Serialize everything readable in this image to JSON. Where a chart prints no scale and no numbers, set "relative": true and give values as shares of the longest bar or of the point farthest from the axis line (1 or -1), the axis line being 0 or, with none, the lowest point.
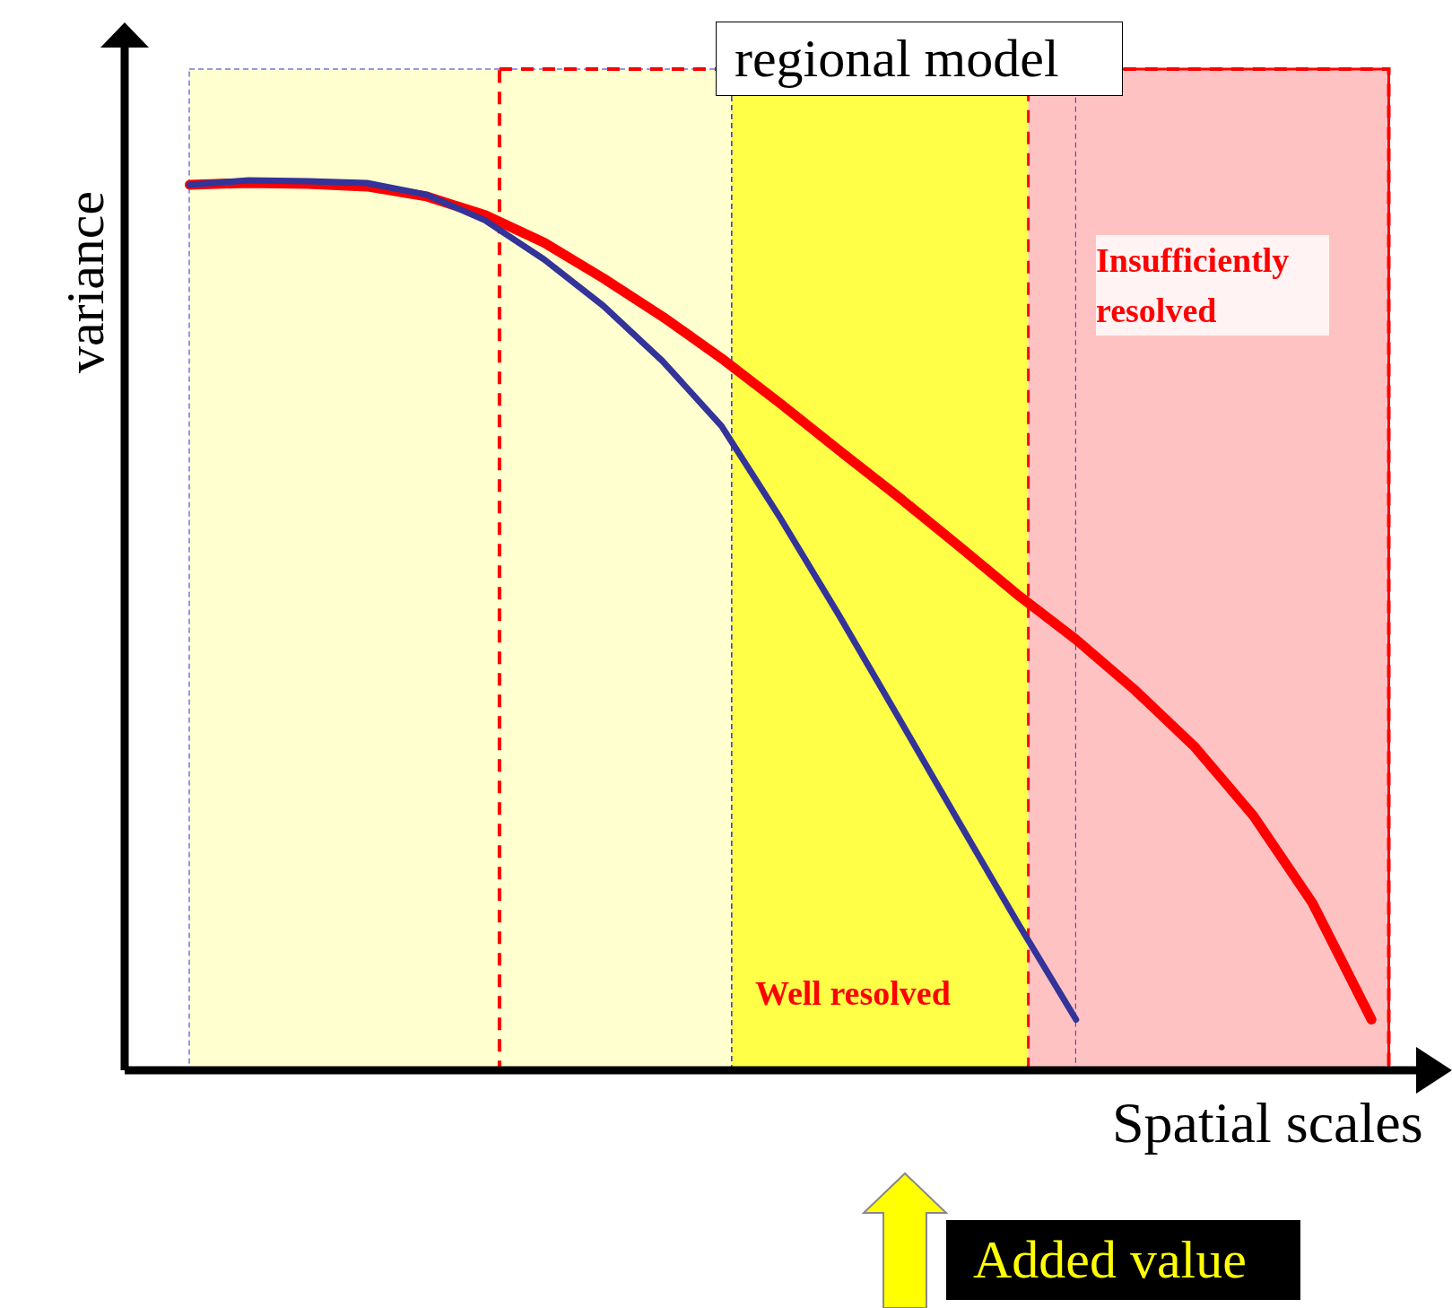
{
  "chart_data": {
    "type": "line",
    "relative": true,
    "xlabel": "Spatial scales",
    "ylabel": "variance",
    "legend": false,
    "marker": "none",
    "line_style": "solid",
    "categories": [
      null,
      null,
      null,
      null,
      null,
      null,
      null,
      null,
      null,
      null,
      null,
      null,
      null,
      null,
      null,
      null,
      null,
      null,
      null,
      null,
      null
    ],
    "series": [
      {
        "color": "#333399",
        "values": [
          0.995,
          1.0,
          0.999,
          0.997,
          0.984,
          0.955,
          0.911,
          0.859,
          0.797,
          0.724,
          0.62,
          0.51,
          0.396,
          0.281,
          0.167,
          0.057,
          null,
          null,
          null,
          null,
          null
        ]
      },
      {
        "color": "#ff0000",
        "values": [
          0.995,
          0.997,
          0.996,
          0.993,
          0.982,
          0.961,
          0.93,
          0.89,
          0.847,
          0.8,
          0.749,
          0.696,
          0.644,
          0.59,
          0.535,
          0.484,
          0.427,
          0.364,
          0.286,
          0.188,
          0.057
        ]
      }
    ],
    "annotations": [
      "regional model",
      "Added value",
      "Well resolved",
      "Insufficiently resolved"
    ]
  }
}
